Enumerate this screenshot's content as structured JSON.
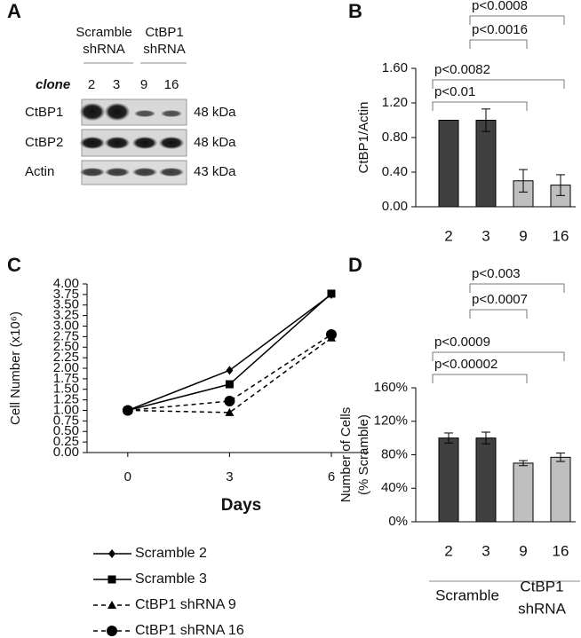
{
  "blot": {
    "label": "A",
    "groups": [
      [
        "Scramble",
        "shRNA"
      ],
      [
        "CtBP1",
        "shRNA"
      ]
    ],
    "clone_label": "clone",
    "clones": [
      "2",
      "3",
      "9",
      "16"
    ],
    "rows": [
      {
        "name": "CtBP1",
        "size": "48 kDa"
      },
      {
        "name": "CtBP2",
        "size": "48 kDa"
      },
      {
        "name": "Actin",
        "size": "43 kDa"
      }
    ]
  },
  "chart_data": [
    {
      "type": "bar",
      "label": "B",
      "y_label": [
        "CtBP1/Actin"
      ],
      "categories": [
        "2",
        "3",
        "9",
        "16"
      ],
      "values": [
        1.0,
        1.0,
        0.3,
        0.25
      ],
      "errors": [
        0,
        0.13,
        0.13,
        0.12
      ],
      "colors": [
        "#404040",
        "#404040",
        "#bfbfbf",
        "#bfbfbf"
      ],
      "ylim": [
        0,
        1.6
      ],
      "yticks": [
        {
          "value": 0,
          "label": "0.00"
        },
        {
          "value": 0.4,
          "label": "0.40"
        },
        {
          "value": 0.8,
          "label": "0.80"
        },
        {
          "value": 1.2,
          "label": "1.20"
        },
        {
          "value": 1.6,
          "label": "1.60"
        }
      ],
      "brackets": [
        {
          "label": "p<0.0008",
          "from": 1,
          "to": 3
        },
        {
          "label": "p<0.0016",
          "from": 1,
          "to": 2
        },
        {
          "label": "p<0.0082",
          "from": 0,
          "to": 3
        },
        {
          "label": "p<0.01",
          "from": 0,
          "to": 2
        }
      ]
    },
    {
      "type": "line",
      "label": "C",
      "x_label": "Days",
      "y_label": [
        "Cell Number (x10⁶)"
      ],
      "x": [
        0,
        3,
        6
      ],
      "xlim": [
        -1.2,
        7.1
      ],
      "xticks": [
        0,
        3,
        6
      ],
      "ylim": [
        0,
        4
      ],
      "yticks": [
        {
          "value": 0,
          "label": "0.00"
        },
        {
          "value": 0.25,
          "label": "0.25"
        },
        {
          "value": 0.5,
          "label": "0.50"
        },
        {
          "value": 0.75,
          "label": "0.75"
        },
        {
          "value": 1,
          "label": "1.00"
        },
        {
          "value": 1.25,
          "label": "1.25"
        },
        {
          "value": 1.5,
          "label": "1.50"
        },
        {
          "value": 1.75,
          "label": "1.75"
        },
        {
          "value": 2,
          "label": "2.00"
        },
        {
          "value": 2.25,
          "label": "2.25"
        },
        {
          "value": 2.5,
          "label": "2.50"
        },
        {
          "value": 2.75,
          "label": "2.75"
        },
        {
          "value": 3,
          "label": "3.00"
        },
        {
          "value": 3.25,
          "label": "3.25"
        },
        {
          "value": 3.5,
          "label": "3.50"
        },
        {
          "value": 3.75,
          "label": "3.75"
        },
        {
          "value": 4,
          "label": "4.00"
        }
      ],
      "series": [
        {
          "name": "Scramble 2",
          "color": "#000000",
          "marker": "diamond",
          "dashed": false,
          "values": [
            1.0,
            1.95,
            3.75
          ]
        },
        {
          "name": "Scramble 3",
          "color": "#000000",
          "marker": "square",
          "dashed": false,
          "values": [
            1.0,
            1.62,
            3.77
          ]
        },
        {
          "name": "CtBP1 shRNA 9",
          "color": "#000000",
          "marker": "triangle",
          "dashed": true,
          "values": [
            1.0,
            0.95,
            2.72
          ]
        },
        {
          "name": "CtBP1 shRNA 16",
          "color": "#000000",
          "marker": "circle",
          "dashed": true,
          "values": [
            1.0,
            1.22,
            2.8
          ]
        }
      ]
    },
    {
      "type": "bar",
      "label": "D",
      "y_label": [
        "Number of Cells",
        "(% Scramble)"
      ],
      "categories": [
        "2",
        "3",
        "9",
        "16"
      ],
      "values": [
        100,
        100,
        70,
        77
      ],
      "errors": [
        6,
        7,
        3,
        5
      ],
      "colors": [
        "#404040",
        "#404040",
        "#bfbfbf",
        "#bfbfbf"
      ],
      "ylim": [
        0,
        160
      ],
      "yticks": [
        {
          "value": 0,
          "label": "0%"
        },
        {
          "value": 40,
          "label": "40%"
        },
        {
          "value": 80,
          "label": "80%"
        },
        {
          "value": 120,
          "label": "120%"
        },
        {
          "value": 160,
          "label": "160%"
        }
      ],
      "brackets": [
        {
          "label": "p<0.003",
          "from": 1,
          "to": 3
        },
        {
          "label": "p<0.0007",
          "from": 1,
          "to": 2
        },
        {
          "label": "p<0.0009",
          "from": 0,
          "to": 3
        },
        {
          "label": "p<0.00002",
          "from": 0,
          "to": 2
        }
      ],
      "groups": [
        {
          "lines": [
            "Scramble"
          ],
          "from": 0,
          "to": 1
        },
        {
          "lines": [
            "CtBP1",
            "shRNA"
          ],
          "from": 2,
          "to": 3
        }
      ]
    }
  ]
}
